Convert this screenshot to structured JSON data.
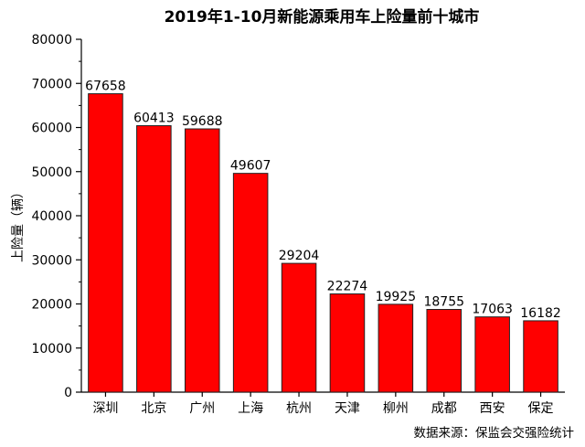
{
  "chart_data": {
    "type": "bar",
    "title": "2019年1-10月新能源乘用车上险量前十城市",
    "xlabel": "",
    "ylabel": "上险量（辆）",
    "ylim": [
      0,
      80000
    ],
    "yticks": [
      0,
      10000,
      20000,
      30000,
      40000,
      50000,
      60000,
      70000,
      80000
    ],
    "categories": [
      "深圳",
      "北京",
      "广州",
      "上海",
      "杭州",
      "天津",
      "柳州",
      "成都",
      "西安",
      "保定"
    ],
    "values": [
      67658,
      60413,
      59688,
      49607,
      29204,
      22274,
      19925,
      18755,
      17063,
      16182
    ],
    "bar_color": "#ff0000",
    "grid": false,
    "legend": "none",
    "source_note": "数据来源：保监会交强险统计"
  }
}
